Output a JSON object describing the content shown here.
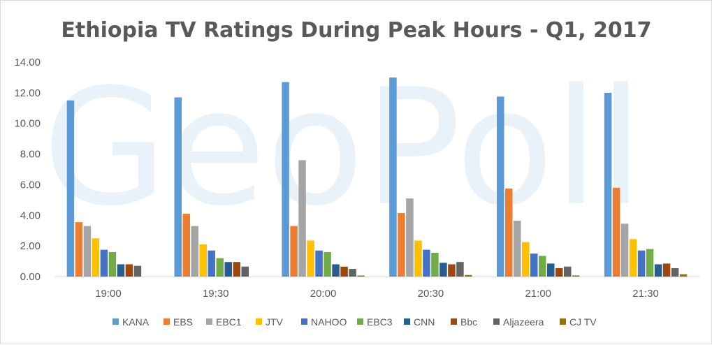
{
  "watermark": "GeoPoll",
  "chart_data": {
    "type": "bar",
    "title": "Ethiopia TV Ratings During Peak Hours - Q1, 2017",
    "xlabel": "",
    "ylabel": "",
    "ylim": [
      0,
      14
    ],
    "yticks": [
      "0.00",
      "2.00",
      "4.00",
      "6.00",
      "8.00",
      "10.00",
      "12.00",
      "14.00"
    ],
    "grid": false,
    "legend_position": "bottom",
    "categories": [
      "19:00",
      "19:30",
      "20:00",
      "20:30",
      "21:00",
      "21:30"
    ],
    "series": [
      {
        "name": "KANA",
        "color": "#5b9bd5",
        "values": [
          11.5,
          11.7,
          12.7,
          13.0,
          11.75,
          12.0
        ]
      },
      {
        "name": "EBS",
        "color": "#ed7d31",
        "values": [
          3.55,
          4.1,
          3.3,
          4.15,
          5.75,
          5.8
        ]
      },
      {
        "name": "EBC1",
        "color": "#a5a5a5",
        "values": [
          3.3,
          3.3,
          7.6,
          5.1,
          3.65,
          3.45
        ]
      },
      {
        "name": "JTV",
        "color": "#ffc000",
        "values": [
          2.5,
          2.1,
          2.35,
          2.35,
          2.25,
          2.45
        ]
      },
      {
        "name": "NAHOO",
        "color": "#4472c4",
        "values": [
          1.75,
          1.7,
          1.7,
          1.75,
          1.5,
          1.7
        ]
      },
      {
        "name": "EBC3",
        "color": "#70ad47",
        "values": [
          1.6,
          1.2,
          1.6,
          1.55,
          1.35,
          1.8
        ]
      },
      {
        "name": "CNN",
        "color": "#255e91",
        "values": [
          0.8,
          0.95,
          0.8,
          0.9,
          0.85,
          0.8
        ]
      },
      {
        "name": "Bbc",
        "color": "#9e480e",
        "values": [
          0.8,
          0.95,
          0.65,
          0.8,
          0.55,
          0.85
        ]
      },
      {
        "name": "Aljazeera",
        "color": "#636363",
        "values": [
          0.7,
          0.65,
          0.5,
          0.95,
          0.65,
          0.55
        ]
      },
      {
        "name": "CJ TV",
        "color": "#997300",
        "values": [
          0.0,
          0.0,
          0.07,
          0.1,
          0.07,
          0.15
        ]
      }
    ]
  }
}
